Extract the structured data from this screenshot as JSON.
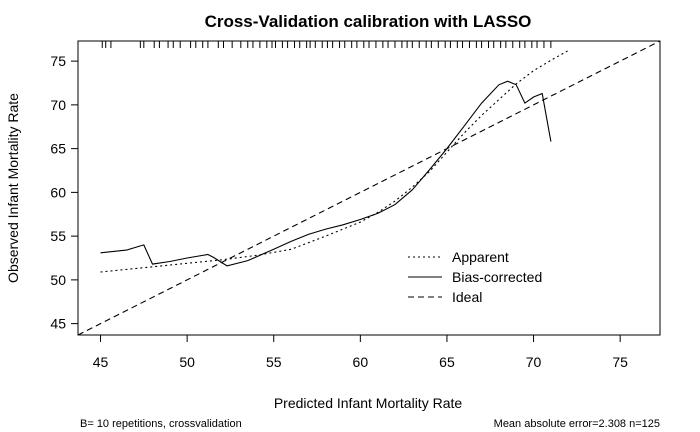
{
  "chart_data": {
    "type": "line",
    "title": "Cross-Validation calibration with LASSO",
    "xlabel": "Predicted Infant Mortality Rate",
    "ylabel": "Observed Infant Mortality Rate",
    "xlim": [
      43.7,
      77.3
    ],
    "ylim": [
      43.7,
      77.3
    ],
    "xticks": [
      45,
      50,
      55,
      60,
      65,
      70,
      75
    ],
    "yticks": [
      45,
      50,
      55,
      60,
      65,
      70,
      75
    ],
    "grid": false,
    "legend_position": "bottom-right",
    "series": [
      {
        "name": "Apparent",
        "style": "dotted",
        "x": [
          45,
          48,
          50,
          52,
          54,
          56,
          58,
          60,
          61,
          62,
          63,
          64,
          65,
          66,
          67,
          68,
          69,
          70,
          71,
          72
        ],
        "y": [
          50.9,
          51.5,
          51.9,
          52.3,
          52.8,
          53.5,
          55.0,
          56.6,
          57.7,
          59.0,
          60.6,
          62.4,
          64.6,
          66.8,
          68.8,
          70.6,
          72.4,
          73.9,
          75.1,
          76.2
        ]
      },
      {
        "name": "Bias-corrected",
        "style": "solid",
        "x": [
          45,
          46.5,
          47.5,
          48.0,
          49,
          50,
          51.2,
          51.5,
          52.3,
          53.5,
          55,
          56,
          57,
          58,
          59,
          60,
          61,
          62,
          63,
          64,
          65,
          66,
          67,
          68,
          68.5,
          69,
          69.5,
          70.0,
          70.5,
          71.0
        ],
        "y": [
          53.1,
          53.4,
          54.0,
          51.8,
          52.1,
          52.5,
          52.9,
          52.6,
          51.6,
          52.2,
          53.5,
          54.4,
          55.2,
          55.8,
          56.3,
          56.9,
          57.6,
          58.6,
          60.3,
          62.6,
          65.0,
          67.6,
          70.2,
          72.3,
          72.7,
          72.3,
          70.2,
          70.9,
          71.3,
          65.8
        ]
      },
      {
        "name": "Ideal",
        "style": "dashed",
        "x": [
          43.7,
          77.3
        ],
        "y": [
          43.7,
          77.3
        ]
      }
    ],
    "rug_x": [
      45.1,
      45.3,
      45.6,
      47.3,
      47.5,
      48.1,
      48.4,
      48.9,
      49.2,
      49.6,
      50.2,
      50.5,
      50.9,
      51.2,
      51.8,
      52.1,
      52.6,
      53.1,
      53.5,
      53.8,
      54.2,
      54.6,
      54.9,
      55.1,
      55.5,
      55.8,
      56.2,
      56.5,
      56.9,
      57.1,
      57.4,
      57.8,
      58.1,
      58.4,
      58.8,
      59.1,
      59.5,
      59.8,
      60.2,
      60.5,
      60.9,
      61.3,
      61.6,
      62.0,
      62.4,
      62.7,
      63.0,
      63.4,
      63.8,
      64.1,
      64.5,
      64.9,
      65.2,
      65.6,
      65.9,
      66.3,
      66.7,
      67.0,
      67.4,
      67.7,
      68.1,
      68.4,
      68.8,
      69.2,
      69.5,
      69.9,
      70.2,
      70.6,
      71.0
    ],
    "footer_left": "B= 10 repetitions, crossvalidation",
    "footer_right": "Mean absolute error=2.308 n=125"
  }
}
